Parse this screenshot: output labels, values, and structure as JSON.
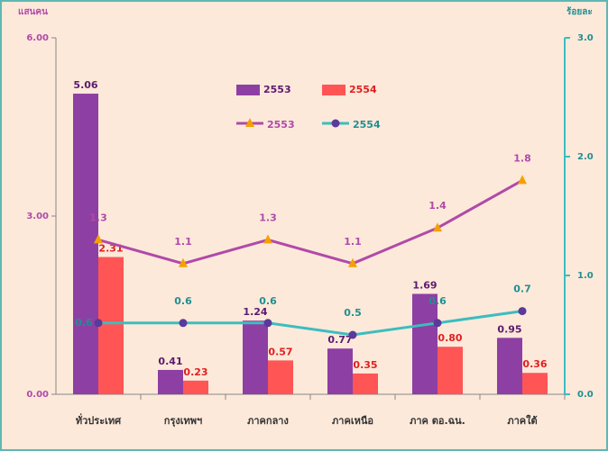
{
  "chart_data": {
    "type": "bar",
    "y_label": "แสนคน",
    "y2_label": "ร้อยละ",
    "categories": [
      "ทั่วประเทศ",
      "กรุงเทพฯ",
      "ภาคกลาง",
      "ภาคเหนือ",
      "ภาค ตอ.ฉน.",
      "ภาคใต้"
    ],
    "ylim": [
      0,
      6
    ],
    "yticks": [
      {
        "value": 0,
        "label": "0.00"
      },
      {
        "value": 3,
        "label": "3.00"
      },
      {
        "value": 6,
        "label": "6.00"
      }
    ],
    "y2lim": [
      0,
      3
    ],
    "y2ticks": [
      {
        "value": 0,
        "label": "0.0"
      },
      {
        "value": 1,
        "label": "1.0"
      },
      {
        "value": 2,
        "label": "2.0"
      },
      {
        "value": 3,
        "label": "3.0"
      }
    ],
    "series": [
      {
        "name": "2553",
        "type": "bar",
        "color": "#8e3fa3",
        "label_color": "#5b1a6e",
        "values": [
          5.06,
          0.41,
          1.24,
          0.77,
          1.69,
          0.95
        ]
      },
      {
        "name": "2554",
        "type": "bar",
        "color": "#ff5555",
        "label_color": "#e02020",
        "values": [
          2.31,
          0.23,
          0.57,
          0.35,
          0.8,
          0.36
        ],
        "value_labels": [
          "2.31",
          "0.23",
          "0.57",
          "0.35",
          "0.80",
          "0.36"
        ]
      },
      {
        "name": "2553",
        "type": "line",
        "axis": "y2",
        "color": "#b04aa8",
        "marker": "triangle",
        "marker_color": "#f5a000",
        "label_color": "#b04aa8",
        "values": [
          1.3,
          1.1,
          1.3,
          1.1,
          1.4,
          1.8
        ]
      },
      {
        "name": "2554",
        "type": "line",
        "axis": "y2",
        "color": "#3cbdbf",
        "marker": "circle",
        "marker_color": "#5a3a9a",
        "label_color": "#1f8f91",
        "values": [
          0.6,
          0.6,
          0.6,
          0.5,
          0.6,
          0.7
        ]
      }
    ]
  }
}
